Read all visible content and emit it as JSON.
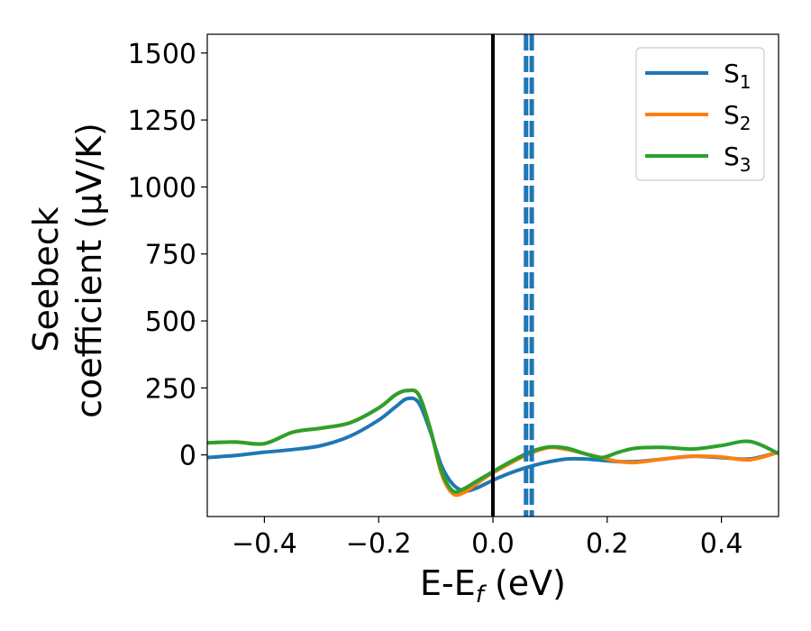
{
  "chart_data": {
    "type": "line",
    "xlabel": "E-E",
    "xlabel_sub": "f",
    "xlabel_unit": " (eV)",
    "ylabel_line1": "Seebeck",
    "ylabel_line2": "coefficient  (μV/K)",
    "xlim": [
      -0.5,
      0.5
    ],
    "ylim": [
      -230,
      1570
    ],
    "xticks": [
      -0.4,
      -0.2,
      0.0,
      0.2,
      0.4
    ],
    "xtick_labels": [
      "−0.4",
      "−0.2",
      "0.0",
      "0.2",
      "0.4"
    ],
    "yticks": [
      0,
      250,
      500,
      750,
      1000,
      1250,
      1500
    ],
    "ytick_labels": [
      "0",
      "250",
      "500",
      "750",
      "1000",
      "1250",
      "1500"
    ],
    "grid": false,
    "legend_position": "top-right",
    "fermi_line": {
      "x": 0.0,
      "color": "#000000"
    },
    "dashed_lines": [
      {
        "x": 0.058,
        "color": "#1f77b4"
      },
      {
        "x": 0.068,
        "color": "#1f77b4"
      }
    ],
    "series": [
      {
        "name": "S",
        "name_sub": "1",
        "color": "#1f77b4",
        "x": [
          -0.5,
          -0.45,
          -0.4,
          -0.35,
          -0.3,
          -0.25,
          -0.2,
          -0.17,
          -0.15,
          -0.13,
          -0.11,
          -0.09,
          -0.07,
          -0.05,
          -0.03,
          -0.01,
          0.01,
          0.04,
          0.07,
          0.1,
          0.13,
          0.16,
          0.19,
          0.22,
          0.25,
          0.3,
          0.35,
          0.4,
          0.45,
          0.5
        ],
        "y": [
          -10,
          -2,
          10,
          20,
          35,
          70,
          130,
          180,
          210,
          195,
          90,
          -40,
          -110,
          -135,
          -125,
          -105,
          -85,
          -60,
          -40,
          -25,
          -15,
          -15,
          -20,
          -25,
          -25,
          -15,
          -5,
          -10,
          -15,
          10
        ]
      },
      {
        "name": "S",
        "name_sub": "2",
        "color": "#ff7f0e",
        "x": [
          -0.5,
          -0.45,
          -0.4,
          -0.35,
          -0.3,
          -0.25,
          -0.2,
          -0.17,
          -0.15,
          -0.13,
          -0.11,
          -0.09,
          -0.07,
          -0.05,
          -0.03,
          -0.01,
          0.01,
          0.04,
          0.07,
          0.1,
          0.13,
          0.16,
          0.19,
          0.22,
          0.25,
          0.3,
          0.35,
          0.4,
          0.45,
          0.5
        ],
        "y": [
          45,
          48,
          42,
          85,
          100,
          120,
          175,
          225,
          240,
          225,
          100,
          -70,
          -145,
          -140,
          -110,
          -80,
          -55,
          -20,
          10,
          28,
          20,
          5,
          -10,
          -25,
          -28,
          -15,
          -5,
          -8,
          -18,
          10
        ]
      },
      {
        "name": "S",
        "name_sub": "3",
        "color": "#2ca02c",
        "x": [
          -0.5,
          -0.45,
          -0.4,
          -0.35,
          -0.3,
          -0.25,
          -0.2,
          -0.17,
          -0.15,
          -0.13,
          -0.11,
          -0.09,
          -0.07,
          -0.05,
          -0.03,
          -0.01,
          0.01,
          0.04,
          0.07,
          0.1,
          0.13,
          0.16,
          0.19,
          0.22,
          0.25,
          0.3,
          0.35,
          0.4,
          0.45,
          0.5
        ],
        "y": [
          45,
          48,
          42,
          85,
          100,
          120,
          175,
          225,
          240,
          225,
          100,
          -60,
          -135,
          -125,
          -100,
          -75,
          -50,
          -15,
          15,
          30,
          25,
          5,
          -10,
          10,
          25,
          28,
          22,
          35,
          50,
          5
        ]
      }
    ]
  }
}
